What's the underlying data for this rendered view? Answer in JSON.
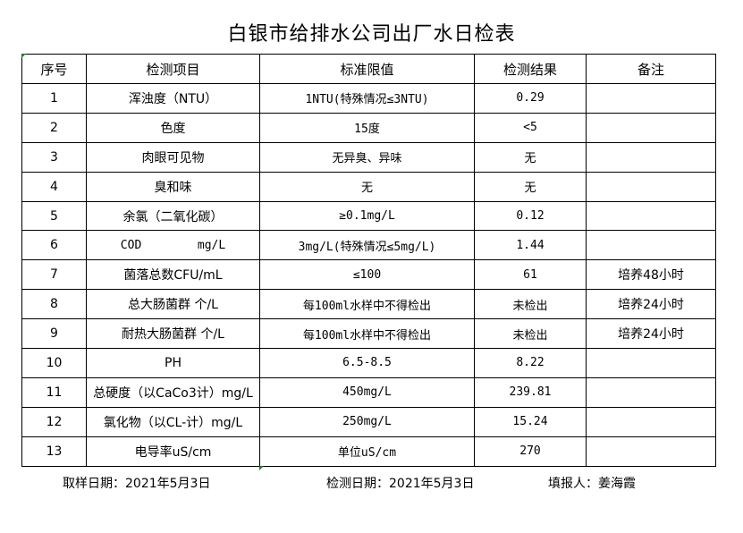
{
  "title": "白银市给排水公司出厂水日检表",
  "columns": [
    "序号",
    "检测项目",
    "标准限值",
    "检测结果",
    "备注"
  ],
  "rows": [
    [
      "1",
      "浑浊度（NTU）",
      "1NTU(特殊情况≤3NTU)",
      "0.29",
      ""
    ],
    [
      "2",
      "色度",
      "15度",
      "<5",
      ""
    ],
    [
      "3",
      "肉眼可见物",
      "无异臭、异味",
      "无",
      ""
    ],
    [
      "4",
      "臭和味",
      "无",
      "无",
      ""
    ],
    [
      "5",
      "余氯（二氧化碳）",
      "≥0.1mg/L",
      "0.12",
      ""
    ],
    [
      "6",
      "COD        mg/L",
      "3mg/L(特殊情况≤5mg/L)",
      "1.44",
      ""
    ],
    [
      "7",
      "菌落总数CFU/mL",
      "≤100",
      "61",
      "培养48小时"
    ],
    [
      "8",
      "总大肠菌群 个/L",
      "每100ml水样中不得检出",
      "未检出",
      "培养24小时"
    ],
    [
      "9",
      "耐热大肠菌群 个/L",
      "每100ml水样中不得检出",
      "未检出",
      "培养24小时"
    ],
    [
      "10",
      "PH",
      "6.5-8.5",
      "8.22",
      ""
    ],
    [
      "11",
      "总硬度（以CaCo3计）mg/L",
      "450mg/L",
      "239.81",
      ""
    ],
    [
      "12",
      "氯化物（以CL-计）mg/L",
      "250mg/L",
      "15.24",
      ""
    ],
    [
      "13",
      "电导率uS/cm",
      "单位uS/cm",
      "270",
      ""
    ]
  ],
  "footer": {
    "sampling_date": "取样日期：2021年5月3日",
    "testing_date": "检测日期：2021年5月3日",
    "reporter": "填报人：姜海霞"
  }
}
